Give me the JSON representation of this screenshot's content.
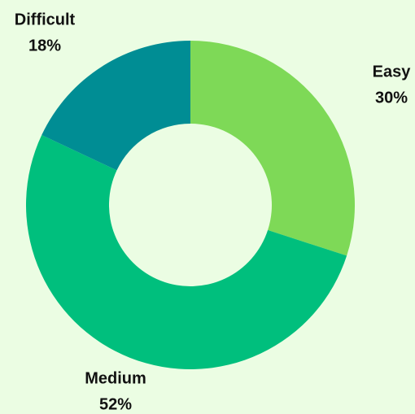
{
  "chart_data": {
    "type": "pie",
    "hole": true,
    "categories": [
      "Easy",
      "Medium",
      "Difficult"
    ],
    "values": [
      30,
      52,
      18
    ],
    "value_labels": [
      "30%",
      "52%",
      "18%"
    ],
    "colors": [
      "#7ed957",
      "#00bf7d",
      "#008d94"
    ]
  }
}
